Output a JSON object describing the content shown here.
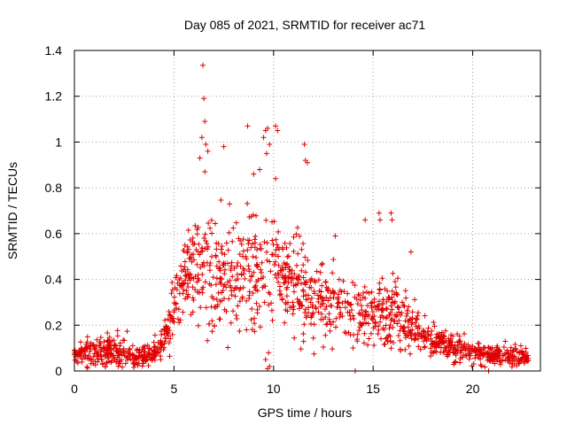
{
  "chart_data": {
    "type": "scatter",
    "title": "Day 085 of 2021, SRMTID for receiver ac71",
    "xlabel": "GPS time / hours",
    "ylabel": "SRMTID / TECUs",
    "xlim": [
      0,
      23.4
    ],
    "ylim": [
      0,
      1.4
    ],
    "x_ticks": [
      0,
      5,
      10,
      15,
      20
    ],
    "x_tick_labels": [
      "0",
      "5",
      "10",
      "15",
      "20"
    ],
    "y_ticks": [
      0,
      0.2,
      0.4,
      0.6,
      0.8,
      1,
      1.2,
      1.4
    ],
    "y_tick_labels": [
      "0",
      "0.2",
      "0.4",
      "0.6",
      "0.8",
      "1",
      "1.2",
      "1.4"
    ],
    "grid": true,
    "marker": "+",
    "color": "#e00000",
    "envelope": [
      {
        "x": 0.0,
        "y": 0.07,
        "spread": 0.04
      },
      {
        "x": 1.0,
        "y": 0.09,
        "spread": 0.05
      },
      {
        "x": 2.0,
        "y": 0.09,
        "spread": 0.06
      },
      {
        "x": 3.0,
        "y": 0.06,
        "spread": 0.04
      },
      {
        "x": 4.0,
        "y": 0.08,
        "spread": 0.04
      },
      {
        "x": 4.5,
        "y": 0.14,
        "spread": 0.06
      },
      {
        "x": 5.0,
        "y": 0.28,
        "spread": 0.1
      },
      {
        "x": 5.5,
        "y": 0.4,
        "spread": 0.14
      },
      {
        "x": 6.0,
        "y": 0.45,
        "spread": 0.17
      },
      {
        "x": 6.5,
        "y": 0.5,
        "spread": 0.22
      },
      {
        "x": 7.0,
        "y": 0.45,
        "spread": 0.2
      },
      {
        "x": 8.0,
        "y": 0.42,
        "spread": 0.2
      },
      {
        "x": 9.0,
        "y": 0.45,
        "spread": 0.22
      },
      {
        "x": 10.0,
        "y": 0.45,
        "spread": 0.22
      },
      {
        "x": 11.0,
        "y": 0.4,
        "spread": 0.18
      },
      {
        "x": 12.0,
        "y": 0.3,
        "spread": 0.16
      },
      {
        "x": 13.0,
        "y": 0.28,
        "spread": 0.13
      },
      {
        "x": 14.0,
        "y": 0.26,
        "spread": 0.12
      },
      {
        "x": 15.0,
        "y": 0.25,
        "spread": 0.12
      },
      {
        "x": 16.0,
        "y": 0.24,
        "spread": 0.12
      },
      {
        "x": 17.0,
        "y": 0.2,
        "spread": 0.09
      },
      {
        "x": 18.0,
        "y": 0.13,
        "spread": 0.06
      },
      {
        "x": 19.0,
        "y": 0.1,
        "spread": 0.05
      },
      {
        "x": 20.0,
        "y": 0.08,
        "spread": 0.04
      },
      {
        "x": 21.0,
        "y": 0.07,
        "spread": 0.03
      },
      {
        "x": 22.0,
        "y": 0.07,
        "spread": 0.04
      },
      {
        "x": 22.7,
        "y": 0.06,
        "spread": 0.03
      }
    ],
    "x_range": [
      0.0,
      22.8
    ],
    "sample_count": 1500,
    "outliers": [
      {
        "x": 6.45,
        "y": 1.335
      },
      {
        "x": 6.5,
        "y": 1.19
      },
      {
        "x": 6.55,
        "y": 1.09
      },
      {
        "x": 6.4,
        "y": 1.02
      },
      {
        "x": 6.6,
        "y": 0.99
      },
      {
        "x": 6.7,
        "y": 0.96
      },
      {
        "x": 6.3,
        "y": 0.93
      },
      {
        "x": 6.55,
        "y": 0.87
      },
      {
        "x": 7.5,
        "y": 0.98
      },
      {
        "x": 8.7,
        "y": 1.07
      },
      {
        "x": 9.6,
        "y": 1.05
      },
      {
        "x": 9.7,
        "y": 1.06
      },
      {
        "x": 9.5,
        "y": 1.02
      },
      {
        "x": 10.1,
        "y": 1.07
      },
      {
        "x": 10.2,
        "y": 1.05
      },
      {
        "x": 9.8,
        "y": 0.99
      },
      {
        "x": 9.65,
        "y": 0.95
      },
      {
        "x": 11.55,
        "y": 0.99
      },
      {
        "x": 11.6,
        "y": 0.92
      },
      {
        "x": 11.7,
        "y": 0.91
      },
      {
        "x": 10.1,
        "y": 0.84
      },
      {
        "x": 9.3,
        "y": 0.88
      },
      {
        "x": 9.0,
        "y": 0.86
      },
      {
        "x": 14.6,
        "y": 0.66
      },
      {
        "x": 15.3,
        "y": 0.69
      },
      {
        "x": 15.35,
        "y": 0.66
      },
      {
        "x": 15.9,
        "y": 0.69
      },
      {
        "x": 15.95,
        "y": 0.66
      },
      {
        "x": 13.1,
        "y": 0.59
      },
      {
        "x": 16.9,
        "y": 0.52
      },
      {
        "x": 9.7,
        "y": 0.01
      },
      {
        "x": 9.8,
        "y": 0.02
      },
      {
        "x": 14.1,
        "y": 0.0
      },
      {
        "x": 20.8,
        "y": 0.0
      },
      {
        "x": 9.6,
        "y": 0.05
      },
      {
        "x": 9.75,
        "y": 0.08
      }
    ]
  }
}
